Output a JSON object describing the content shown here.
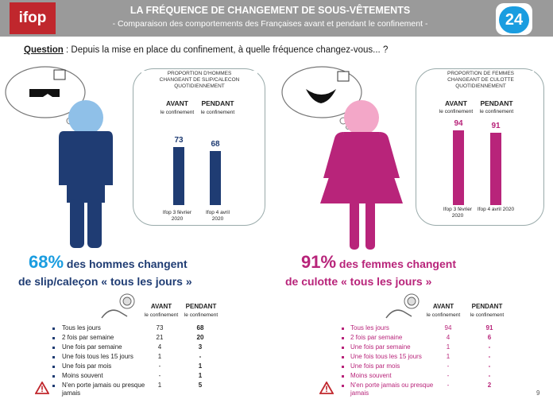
{
  "header": {
    "logo": "ifop",
    "title": "LA FRÉQUENCE DE CHANGEMENT DE SOUS-VÊTEMENTS",
    "subtitle": "- Comparaison des comportements des Françaises avant et pendant le confinement -",
    "badge": "24"
  },
  "question": {
    "label": "Question",
    "text": " : Depuis la mise en place du confinement, à quelle fréquence changez-vous... ?"
  },
  "colors": {
    "men": "#1f3c73",
    "men_head": "#8fc0e8",
    "women": "#b8247a",
    "women_head": "#f3a7c8",
    "header_bg": "#9a9a9a",
    "logo_red": "#c0272d"
  },
  "men": {
    "panel_title": [
      "PROPORTION D'HOMMES",
      "CHANGEANT  DE SLIP/CALECON",
      "QUOTIDIENNEMENT"
    ],
    "col1_title": "AVANT",
    "col1_sub": "le confinement",
    "col2_title": "PENDANT",
    "col2_sub": "le confinement",
    "big_pct": "68%",
    "big_line1": " des hommes changent",
    "big_line2": "de slip/caleçon « tous les jours »"
  },
  "women": {
    "panel_title": [
      "PROPORTION DE FEMMES",
      "CHANGEANT  DE CULOTTE",
      "QUOTIDIENNEMENT"
    ],
    "col1_title": "AVANT",
    "col1_sub": "le confinement",
    "col2_title": "PENDANT",
    "col2_sub": "le confinement",
    "big_pct": "91%",
    "big_line1": " des femmes changent",
    "big_line2": "de culotte « tous les jours »"
  },
  "chart_data": [
    {
      "type": "bar",
      "categories": [
        "Ifop 3 février 2020",
        "Ifop 4 avril 2020"
      ],
      "values": [
        73,
        68
      ],
      "ylim": [
        0,
        100
      ],
      "color": "#1f3c73"
    },
    {
      "type": "bar",
      "categories": [
        "Ifop 3 février 2020",
        "Ifop 4 avril 2020"
      ],
      "values": [
        94,
        91
      ],
      "ylim": [
        0,
        100
      ],
      "color": "#b8247a"
    },
    {
      "type": "table",
      "columns": [
        "AVANT le confinement",
        "PENDANT le confinement"
      ],
      "rows": [
        {
          "label": "Tous les jours",
          "avant": "73",
          "pendant": "68"
        },
        {
          "label": "2 fois par semaine",
          "avant": "21",
          "pendant": "20"
        },
        {
          "label": "Une fois par semaine",
          "avant": "4",
          "pendant": "3"
        },
        {
          "label": "Une fois tous les 15 jours",
          "avant": "1",
          "pendant": "-"
        },
        {
          "label": "Une fois par mois",
          "avant": "-",
          "pendant": "1"
        },
        {
          "label": "Moins souvent",
          "avant": "-",
          "pendant": "1"
        },
        {
          "label": "N'en porte jamais ou presque jamais",
          "avant": "1",
          "pendant": "5"
        }
      ]
    },
    {
      "type": "table",
      "columns": [
        "AVANT le confinement",
        "PENDANT le confinement"
      ],
      "rows": [
        {
          "label": "Tous les jours",
          "avant": "94",
          "pendant": "91"
        },
        {
          "label": "2 fois par semaine",
          "avant": "4",
          "pendant": "6"
        },
        {
          "label": "Une fois par semaine",
          "avant": "1",
          "pendant": "-"
        },
        {
          "label": "Une fois tous les 15 jours",
          "avant": "1",
          "pendant": "-"
        },
        {
          "label": "Une fois par mois",
          "avant": "-",
          "pendant": "-"
        },
        {
          "label": "Moins souvent",
          "avant": "-",
          "pendant": "-"
        },
        {
          "label": "N'en porte jamais ou presque jamais",
          "avant": "-",
          "pendant": "2"
        }
      ]
    }
  ],
  "page_number": "9"
}
